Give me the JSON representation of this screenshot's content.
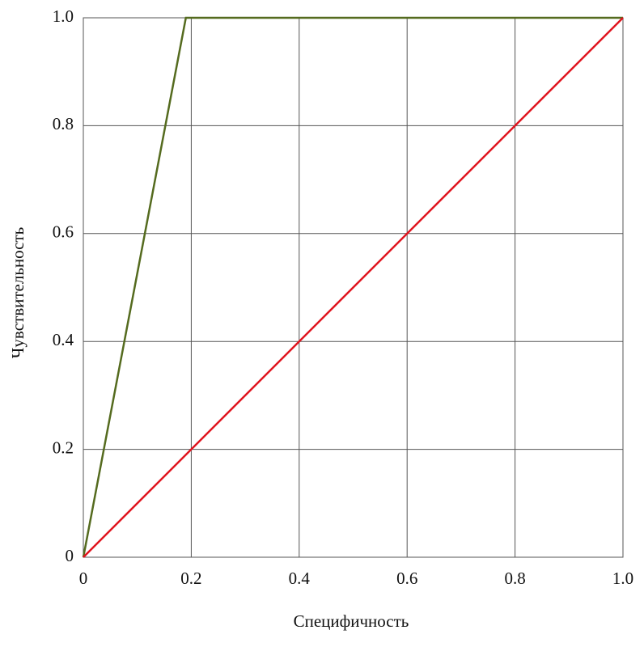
{
  "chart_data": {
    "type": "line",
    "x_label": "Специфичность",
    "y_label": "Чувствительность",
    "series": [
      {
        "color": "#556b1f",
        "x": [
          0,
          0.19,
          1
        ],
        "values": [
          0,
          1,
          1
        ]
      },
      {
        "color": "#e0141e",
        "x": [
          0,
          1
        ],
        "values": [
          0,
          1
        ]
      }
    ],
    "xlim": [
      0,
      1
    ],
    "ylim": [
      0,
      1
    ],
    "xticks": [
      0,
      0.2,
      0.4,
      0.6,
      0.8,
      {
        "value": 1,
        "label": "1.0"
      }
    ],
    "yticks": [
      0,
      0.2,
      0.4,
      0.6,
      0.8,
      {
        "value": 1,
        "label": "1.0"
      }
    ],
    "grid": true
  }
}
